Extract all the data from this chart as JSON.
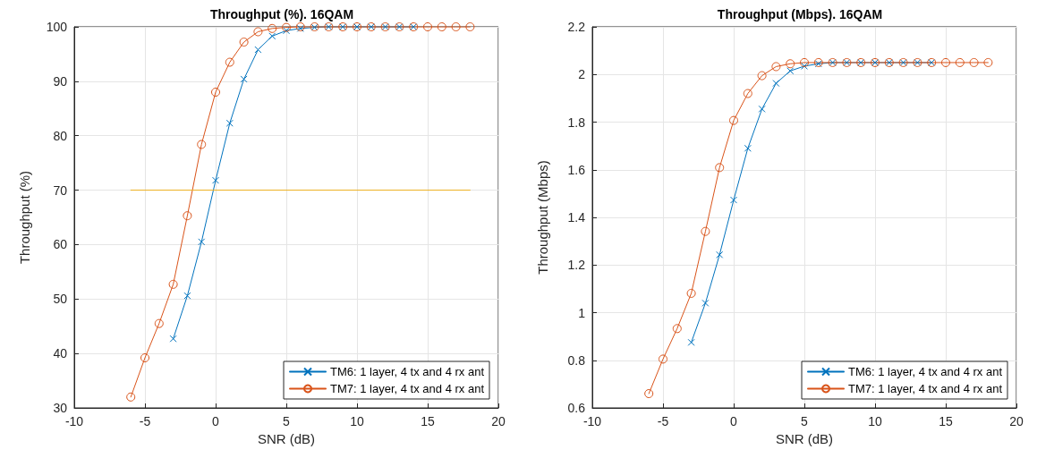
{
  "chart_data": [
    {
      "type": "line",
      "title": "Throughput (%). 16QAM",
      "xlabel": "SNR (dB)",
      "ylabel": "Throughput (%)",
      "xlim": [
        -10,
        20
      ],
      "xticks": [
        -10,
        -5,
        0,
        5,
        10,
        15,
        20
      ],
      "ylim": [
        30,
        100
      ],
      "yticks": [
        30,
        40,
        50,
        60,
        70,
        80,
        90,
        100
      ],
      "grid": true,
      "legend": "bottom right",
      "series": [
        {
          "name": "TM6: 1 layer, 4 tx and 4 rx ant",
          "color": "#0072bd",
          "marker": "cross",
          "x": [
            -3,
            -2,
            -1,
            0,
            1,
            2,
            3,
            4,
            5,
            6,
            7,
            8,
            9,
            10,
            11,
            12,
            13,
            14
          ],
          "values": [
            42.7,
            50.6,
            60.5,
            71.8,
            82.3,
            90.4,
            95.8,
            98.3,
            99.3,
            99.7,
            99.9,
            100,
            100,
            100,
            100,
            100,
            100,
            100
          ]
        },
        {
          "name": "TM7: 1 layer, 4 tx and 4 rx ant",
          "color": "#d95319",
          "marker": "circle",
          "x": [
            -6,
            -5,
            -4,
            -3,
            -2,
            -1,
            0,
            1,
            2,
            3,
            4,
            5,
            6,
            7,
            8,
            9,
            10,
            11,
            12,
            13,
            14,
            15,
            16,
            17,
            18
          ],
          "values": [
            32,
            39.2,
            45.5,
            52.7,
            65.3,
            78.4,
            88,
            93.5,
            97.2,
            99.1,
            99.7,
            99.9,
            100,
            100,
            100,
            100,
            100,
            100,
            100,
            100,
            100,
            100,
            100,
            100,
            100
          ]
        },
        {
          "color": "#edb120",
          "marker": "none",
          "x": [
            -6,
            18
          ],
          "values": [
            70,
            70
          ]
        }
      ]
    },
    {
      "type": "line",
      "title": "Throughput (Mbps). 16QAM",
      "xlabel": "SNR (dB)",
      "ylabel": "Throughput (Mbps)",
      "xlim": [
        -10,
        20
      ],
      "xticks": [
        -10,
        -5,
        0,
        5,
        10,
        15,
        20
      ],
      "ylim": [
        0.6,
        2.2
      ],
      "yticks": [
        0.6,
        0.8,
        1,
        1.2,
        1.4,
        1.6,
        1.8,
        2,
        2.2
      ],
      "grid": true,
      "legend": "bottom right",
      "series": [
        {
          "name": "TM6: 1 layer, 4 tx and 4 rx ant",
          "color": "#0072bd",
          "marker": "cross",
          "x": [
            -3,
            -2,
            -1,
            0,
            1,
            2,
            3,
            4,
            5,
            6,
            7,
            8,
            9,
            10,
            11,
            12,
            13,
            14
          ],
          "values": [
            0.875,
            1.04,
            1.243,
            1.473,
            1.69,
            1.855,
            1.963,
            2.015,
            2.035,
            2.045,
            2.05,
            2.05,
            2.05,
            2.05,
            2.05,
            2.05,
            2.05,
            2.05
          ]
        },
        {
          "name": "TM7: 1 layer, 4 tx and 4 rx ant",
          "color": "#d95319",
          "marker": "circle",
          "x": [
            -6,
            -5,
            -4,
            -3,
            -2,
            -1,
            0,
            1,
            2,
            3,
            4,
            5,
            6,
            7,
            8,
            9,
            10,
            11,
            12,
            13,
            14,
            15,
            16,
            17,
            18
          ],
          "values": [
            0.66,
            0.805,
            0.933,
            1.081,
            1.341,
            1.609,
            1.807,
            1.92,
            1.995,
            2.033,
            2.045,
            2.05,
            2.05,
            2.05,
            2.05,
            2.05,
            2.05,
            2.05,
            2.05,
            2.05,
            2.05,
            2.05,
            2.05,
            2.05,
            2.05
          ]
        }
      ]
    }
  ]
}
